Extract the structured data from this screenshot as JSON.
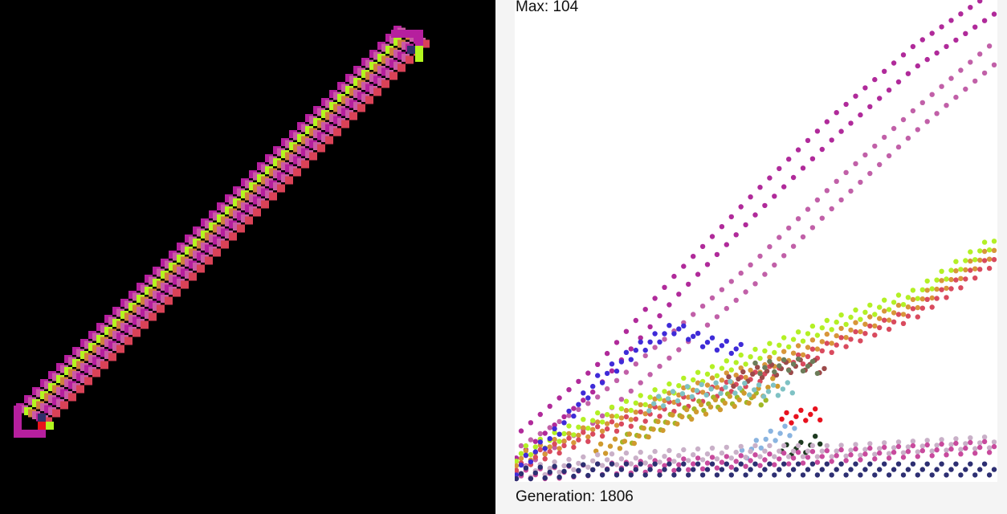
{
  "grid": {
    "background": "#000000",
    "palette": [
      "#b61f9e",
      "#c95aa5",
      "#d0803e",
      "#b3f71f",
      "#d94257",
      "#2f2f6a",
      "#e8141c"
    ]
  },
  "graph": {
    "max_text": "Max: 104",
    "generation_text": "Generation: 1806",
    "max_value": 104,
    "generation": 1806,
    "chart_data": {
      "type": "scatter",
      "title": "",
      "xlabel": "",
      "ylabel": "",
      "x_range": [
        0,
        1806
      ],
      "ylim": [
        0,
        104
      ],
      "grid": false,
      "series": [
        {
          "color": "#b02a9a",
          "x": [
            0,
            300,
            600,
            900,
            1200,
            1500,
            1806
          ],
          "values": [
            7,
            22,
            42,
            60,
            77,
            92,
            104
          ]
        },
        {
          "color": "#c160a8",
          "x": [
            0,
            300,
            600,
            900,
            1200,
            1500,
            1806
          ],
          "values": [
            4,
            15,
            30,
            45,
            62,
            78,
            93
          ]
        },
        {
          "color": "#b3f025",
          "x": [
            0,
            300,
            600,
            900,
            1200,
            1500,
            1806
          ],
          "values": [
            5,
            13,
            20,
            27,
            34,
            40,
            52
          ]
        },
        {
          "color": "#d8963a",
          "x": [
            0,
            300,
            600,
            900,
            1200,
            1500,
            1806
          ],
          "values": [
            4,
            11,
            18,
            24,
            31,
            38,
            50
          ]
        },
        {
          "color": "#d94a5e",
          "x": [
            0,
            300,
            600,
            900,
            1200,
            1500,
            1806
          ],
          "values": [
            3,
            10,
            16,
            22,
            29,
            36,
            48
          ]
        },
        {
          "color": "#3f2bd8",
          "x": [
            0,
            150,
            300,
            450,
            600,
            700,
            850
          ],
          "values": [
            2,
            10,
            21,
            28,
            33,
            30,
            28
          ]
        },
        {
          "color": "#a0b826",
          "x": [
            400,
            550,
            700,
            850,
            950
          ],
          "values": [
            8,
            12,
            16,
            18,
            17
          ]
        },
        {
          "color": "#cf9a2e",
          "x": [
            300,
            450,
            600,
            750,
            900,
            1000
          ],
          "values": [
            6,
            9,
            13,
            16,
            18,
            22
          ]
        },
        {
          "color": "#9c4a4a",
          "x": [
            800,
            900,
            1000,
            1100,
            1160
          ],
          "values": [
            21,
            23,
            24,
            25,
            24
          ]
        },
        {
          "color": "#7fc2c4",
          "x": [
            500,
            650,
            800,
            950,
            1050
          ],
          "values": [
            16,
            19,
            20,
            19,
            20
          ]
        },
        {
          "color": "#6c7d5a",
          "x": [
            900,
            1050,
            1150
          ],
          "values": [
            24,
            25,
            24
          ]
        },
        {
          "color": "#e8111e",
          "x": [
            1000,
            1100,
            1160
          ],
          "values": [
            13,
            14,
            14
          ]
        },
        {
          "color": "#8ab4e0",
          "x": [
            850,
            950,
            1050
          ],
          "values": [
            5,
            9,
            11
          ]
        },
        {
          "color": "#1d3a20",
          "x": [
            1000,
            1100,
            1150
          ],
          "values": [
            6,
            7,
            9
          ]
        },
        {
          "color": "#c9b0c8",
          "x": [
            0,
            300,
            600,
            900,
            1200,
            1500,
            1806
          ],
          "values": [
            1,
            4,
            5,
            6,
            6,
            7,
            8
          ]
        },
        {
          "color": "#c84a9d",
          "x": [
            0,
            300,
            600,
            900,
            1200,
            1500,
            1806
          ],
          "values": [
            0.5,
            2,
            3,
            4,
            5,
            6,
            7
          ]
        },
        {
          "color": "#2d2f72",
          "x": [
            0,
            300,
            600,
            900,
            1200,
            1500,
            1806
          ],
          "values": [
            1,
            2,
            2,
            2,
            2,
            2,
            2
          ]
        }
      ]
    }
  }
}
